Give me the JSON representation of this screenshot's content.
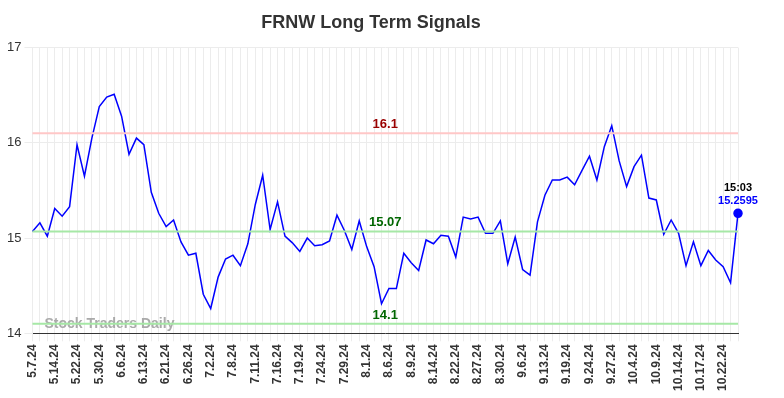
{
  "chart_data": {
    "type": "line",
    "title": "FRNW Long Term Signals",
    "categories": [
      "5.7.24",
      null,
      null,
      "5.14.24",
      null,
      null,
      "5.22.24",
      null,
      null,
      "5.30.24",
      null,
      null,
      "6.6.24",
      null,
      null,
      "6.13.24",
      null,
      null,
      "6.21.24",
      null,
      null,
      "6.26.24",
      null,
      null,
      "7.2.24",
      null,
      null,
      "7.8.24",
      null,
      null,
      "7.11.24",
      null,
      null,
      "7.16.24",
      null,
      null,
      "7.19.24",
      null,
      null,
      "7.24.24",
      null,
      null,
      "7.29.24",
      null,
      null,
      "8.1.24",
      null,
      null,
      "8.6.24",
      null,
      null,
      "8.9.24",
      null,
      null,
      "8.14.24",
      null,
      null,
      "8.22.24",
      null,
      null,
      "8.27.24",
      null,
      null,
      "8.30.24",
      null,
      null,
      "9.6.24",
      null,
      null,
      "9.13.24",
      null,
      null,
      "9.19.24",
      null,
      null,
      "9.24.24",
      null,
      null,
      "9.27.24",
      null,
      null,
      "10.4.24",
      null,
      null,
      "10.9.24",
      null,
      null,
      "10.14.24",
      null,
      null,
      "10.17.24",
      null,
      null,
      "10.22.24",
      null,
      null
    ],
    "values": [
      15.07,
      15.16,
      15.02,
      15.31,
      15.23,
      15.33,
      15.98,
      15.65,
      16.05,
      16.38,
      16.48,
      16.51,
      16.28,
      15.88,
      16.05,
      15.98,
      15.48,
      15.26,
      15.12,
      15.19,
      14.96,
      14.82,
      14.84,
      14.41,
      14.26,
      14.59,
      14.78,
      14.82,
      14.71,
      14.94,
      15.35,
      15.66,
      15.09,
      15.38,
      15.02,
      14.95,
      14.86,
      15.0,
      14.92,
      14.93,
      14.97,
      15.24,
      15.08,
      14.88,
      15.18,
      14.91,
      14.7,
      14.31,
      14.47,
      14.47,
      14.84,
      14.74,
      14.66,
      14.98,
      14.94,
      15.03,
      15.02,
      14.8,
      15.22,
      15.2,
      15.22,
      15.05,
      15.05,
      15.18,
      14.73,
      15.01,
      14.67,
      14.61,
      15.17,
      15.45,
      15.61,
      15.61,
      15.64,
      15.56,
      15.71,
      15.86,
      15.61,
      15.96,
      16.18,
      15.81,
      15.54,
      15.75,
      15.87,
      15.42,
      15.4,
      15.04,
      15.19,
      15.05,
      14.71,
      14.96,
      14.71,
      14.87,
      14.77,
      14.7,
      14.53,
      15.2595
    ],
    "color": "#0000ff",
    "ylim": [
      14,
      17
    ],
    "yticks": [
      14,
      15,
      16,
      17
    ],
    "grid": true,
    "reference_lines": [
      {
        "value": 16.1,
        "label": "16.1",
        "color": "#ffc7c7",
        "label_color": "#990000"
      },
      {
        "value": 15.07,
        "label": "15.07",
        "color": "#a6e8a6",
        "label_color": "#006600"
      },
      {
        "value": 14.1,
        "label": "14.1",
        "color": "#a6e8a6",
        "label_color": "#006600"
      }
    ],
    "last_point": {
      "time": "15:03",
      "value_label": "15.2595"
    },
    "watermark": "Stock Traders Daily"
  }
}
